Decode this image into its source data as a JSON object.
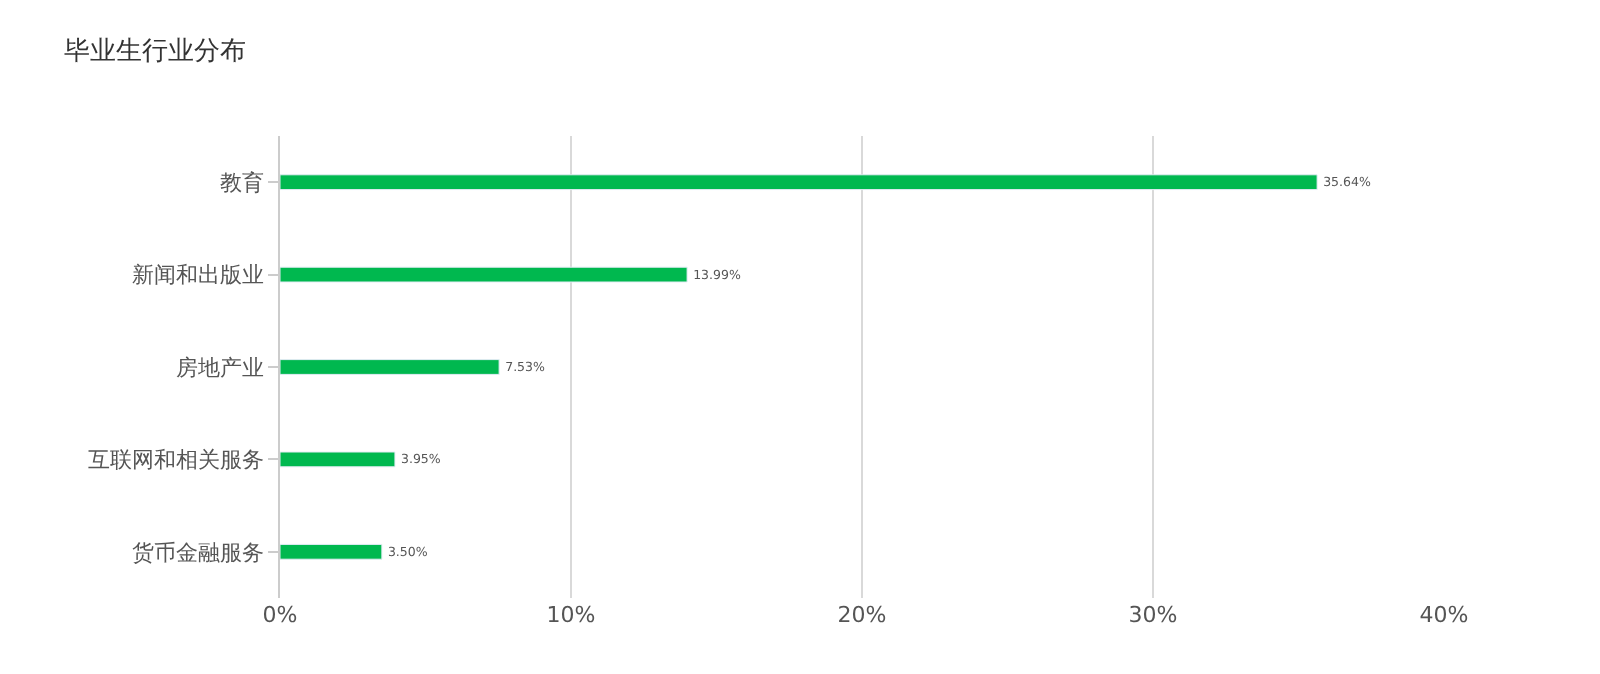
{
  "chart_data": {
    "type": "bar",
    "orientation": "horizontal",
    "title": "毕业生行业分布",
    "categories": [
      "教育",
      "新闻和出版业",
      "房地产业",
      "互联网和相关服务",
      "货币金融服务"
    ],
    "values": [
      35.64,
      13.99,
      7.53,
      3.95,
      3.5
    ],
    "value_labels": [
      "35.64%",
      "13.99%",
      "7.53%",
      "3.95%",
      "3.50%"
    ],
    "color": "#00b84f",
    "xlim": [
      0,
      40
    ],
    "xticks": [
      {
        "value": 0,
        "label": "0%"
      },
      {
        "value": 10,
        "label": "10%"
      },
      {
        "value": 20,
        "label": "20%"
      },
      {
        "value": 30,
        "label": "30%"
      },
      {
        "value": 40,
        "label": "40%"
      }
    ],
    "grid": "x",
    "legend": false
  }
}
